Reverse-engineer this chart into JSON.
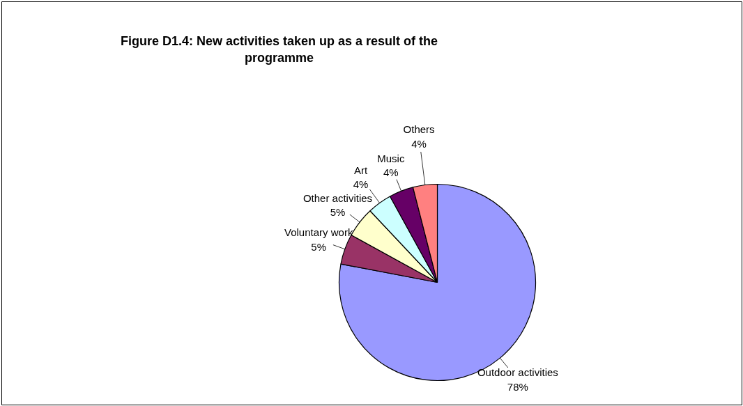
{
  "chart_data": {
    "type": "pie",
    "title": "Figure D1.4: New activities taken up as a result of the programme",
    "categories": [
      "Outdoor activities",
      "Voluntary work",
      "Other activities",
      "Art",
      "Music",
      "Others"
    ],
    "values": [
      78,
      5,
      5,
      4,
      4,
      4
    ],
    "value_labels": [
      "78%",
      "5%",
      "5%",
      "4%",
      "4%",
      "4%"
    ],
    "colors": [
      "#9999ff",
      "#993366",
      "#ffffcc",
      "#ccffff",
      "#660066",
      "#ff8080"
    ]
  }
}
